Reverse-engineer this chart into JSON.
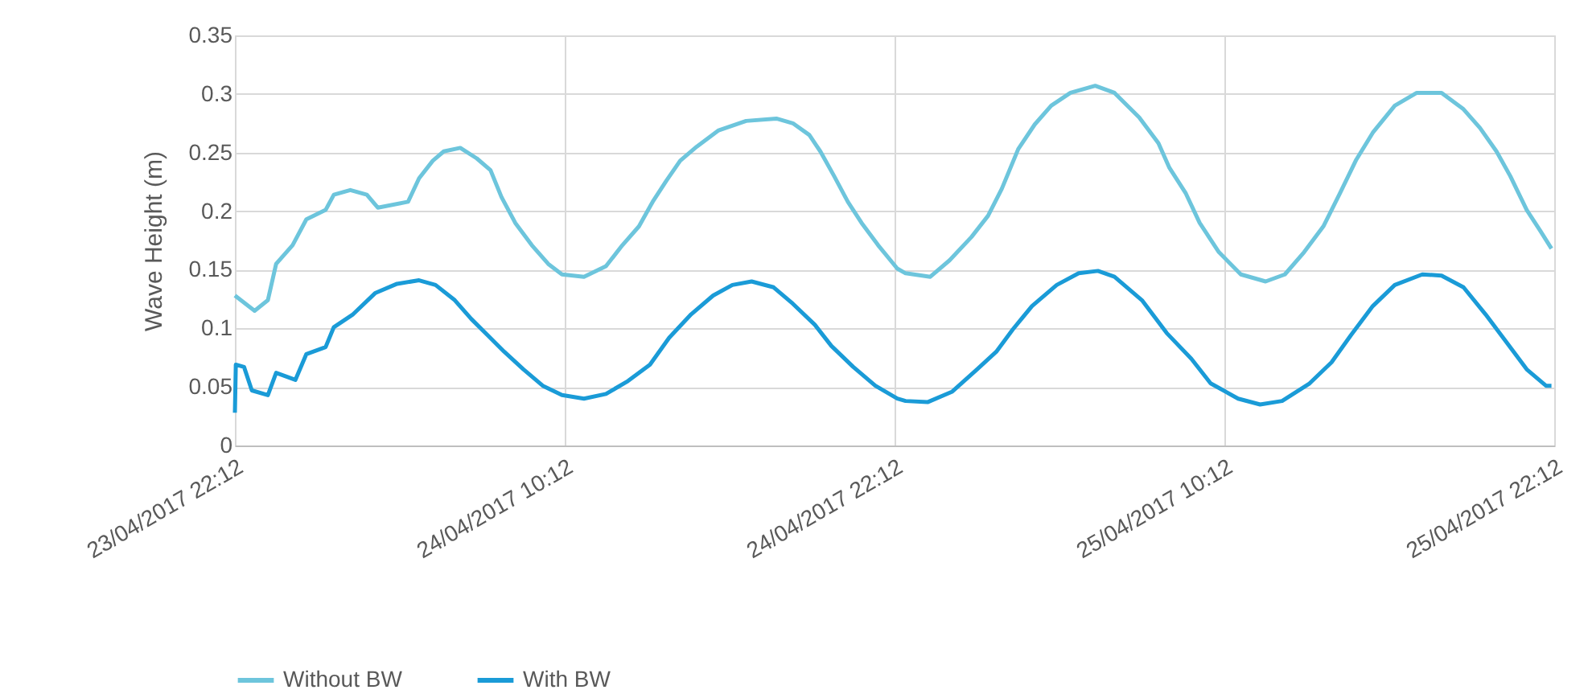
{
  "chart_data": {
    "type": "line",
    "ylabel": "Wave Height (m)",
    "xlim": [
      "2017-04-23T22:12",
      "2017-04-25T22:12"
    ],
    "xticks": [
      {
        "value": "2017-04-23T22:12",
        "label": "23/04/2017 22:12"
      },
      {
        "value": "2017-04-24T10:12",
        "label": "24/04/2017 10:12"
      },
      {
        "value": "2017-04-24T22:12",
        "label": "24/04/2017 22:12"
      },
      {
        "value": "2017-04-25T10:12",
        "label": "25/04/2017 10:12"
      },
      {
        "value": "2017-04-25T22:12",
        "label": "25/04/2017 22:12"
      }
    ],
    "ylim": [
      0,
      0.35
    ],
    "yticks": [
      0,
      0.05,
      0.1,
      0.15,
      0.2,
      0.25,
      0.3,
      0.35
    ],
    "grid": true,
    "legend": "bottom",
    "marker": "none",
    "line_style": "solid",
    "series": [
      {
        "name": "Without BW",
        "color": "#6dc5dc",
        "x": [
          "2017-04-23T22:12",
          "2017-04-23T22:55",
          "2017-04-23T23:24",
          "2017-04-23T23:42",
          "2017-04-24T00:18",
          "2017-04-24T00:48",
          "2017-04-24T01:30",
          "2017-04-24T01:48",
          "2017-04-24T02:24",
          "2017-04-24T03:00",
          "2017-04-24T03:24",
          "2017-04-24T04:30",
          "2017-04-24T04:54",
          "2017-04-24T05:24",
          "2017-04-24T05:48",
          "2017-04-24T06:24",
          "2017-04-24T07:00",
          "2017-04-24T07:30",
          "2017-04-24T07:54",
          "2017-04-24T08:24",
          "2017-04-24T09:00",
          "2017-04-24T09:36",
          "2017-04-24T10:06",
          "2017-04-24T10:54",
          "2017-04-24T11:42",
          "2017-04-24T12:18",
          "2017-04-24T12:54",
          "2017-04-24T13:24",
          "2017-04-24T13:54",
          "2017-04-24T14:24",
          "2017-04-24T15:00",
          "2017-04-24T15:48",
          "2017-04-24T16:48",
          "2017-04-24T17:54",
          "2017-04-24T18:30",
          "2017-04-24T19:06",
          "2017-04-24T19:30",
          "2017-04-24T20:00",
          "2017-04-24T20:30",
          "2017-04-24T21:00",
          "2017-04-24T21:36",
          "2017-04-24T22:18",
          "2017-04-24T22:36",
          "2017-04-24T23:30",
          "2017-04-25T00:12",
          "2017-04-25T01:00",
          "2017-04-25T01:36",
          "2017-04-25T02:06",
          "2017-04-25T02:42",
          "2017-04-25T03:18",
          "2017-04-25T03:54",
          "2017-04-25T04:36",
          "2017-04-25T05:30",
          "2017-04-25T06:12",
          "2017-04-25T07:06",
          "2017-04-25T07:48",
          "2017-04-25T08:12",
          "2017-04-25T08:48",
          "2017-04-25T09:18",
          "2017-04-25T10:00",
          "2017-04-25T10:48",
          "2017-04-25T11:42",
          "2017-04-25T12:24",
          "2017-04-25T13:06",
          "2017-04-25T13:48",
          "2017-04-25T14:24",
          "2017-04-25T15:00",
          "2017-04-25T15:36",
          "2017-04-25T16:24",
          "2017-04-25T17:12",
          "2017-04-25T18:06",
          "2017-04-25T18:54",
          "2017-04-25T19:30",
          "2017-04-25T20:06",
          "2017-04-25T20:36",
          "2017-04-25T21:12",
          "2017-04-25T21:42",
          "2017-04-25T22:06"
        ],
        "values": [
          0.128,
          0.115,
          0.124,
          0.155,
          0.171,
          0.193,
          0.201,
          0.214,
          0.218,
          0.214,
          0.203,
          0.208,
          0.228,
          0.243,
          0.251,
          0.254,
          0.245,
          0.235,
          0.212,
          0.19,
          0.171,
          0.155,
          0.146,
          0.144,
          0.153,
          0.171,
          0.187,
          0.208,
          0.226,
          0.243,
          0.255,
          0.269,
          0.277,
          0.279,
          0.275,
          0.265,
          0.251,
          0.23,
          0.208,
          0.19,
          0.171,
          0.151,
          0.147,
          0.144,
          0.158,
          0.178,
          0.196,
          0.219,
          0.253,
          0.274,
          0.29,
          0.301,
          0.307,
          0.301,
          0.28,
          0.258,
          0.237,
          0.215,
          0.19,
          0.165,
          0.146,
          0.14,
          0.146,
          0.165,
          0.187,
          0.215,
          0.244,
          0.267,
          0.29,
          0.301,
          0.301,
          0.287,
          0.271,
          0.251,
          0.23,
          0.201,
          0.183,
          0.168
        ]
      },
      {
        "name": "With BW",
        "color": "#1a9bd7",
        "x": [
          "2017-04-23T22:12",
          "2017-04-23T22:14",
          "2017-04-23T22:32",
          "2017-04-23T22:49",
          "2017-04-23T23:24",
          "2017-04-23T23:42",
          "2017-04-24T00:24",
          "2017-04-24T00:48",
          "2017-04-24T01:30",
          "2017-04-24T01:48",
          "2017-04-24T02:30",
          "2017-04-24T03:18",
          "2017-04-24T04:06",
          "2017-04-24T04:54",
          "2017-04-24T05:30",
          "2017-04-24T06:12",
          "2017-04-24T06:48",
          "2017-04-24T07:24",
          "2017-04-24T08:00",
          "2017-04-24T08:42",
          "2017-04-24T09:24",
          "2017-04-24T10:06",
          "2017-04-24T10:54",
          "2017-04-24T11:42",
          "2017-04-24T12:30",
          "2017-04-24T13:18",
          "2017-04-24T14:00",
          "2017-04-24T14:48",
          "2017-04-24T15:36",
          "2017-04-24T16:18",
          "2017-04-24T17:00",
          "2017-04-24T17:48",
          "2017-04-24T18:30",
          "2017-04-24T19:18",
          "2017-04-24T19:54",
          "2017-04-24T20:42",
          "2017-04-24T21:30",
          "2017-04-24T22:18",
          "2017-04-24T22:36",
          "2017-04-24T23:24",
          "2017-04-25T00:18",
          "2017-04-25T01:12",
          "2017-04-25T01:54",
          "2017-04-25T02:30",
          "2017-04-25T03:12",
          "2017-04-25T04:06",
          "2017-04-25T04:54",
          "2017-04-25T05:36",
          "2017-04-25T06:12",
          "2017-04-25T07:12",
          "2017-04-25T08:06",
          "2017-04-25T09:00",
          "2017-04-25T09:42",
          "2017-04-25T10:42",
          "2017-04-25T11:30",
          "2017-04-25T12:18",
          "2017-04-25T13:18",
          "2017-04-25T14:06",
          "2017-04-25T14:48",
          "2017-04-25T15:36",
          "2017-04-25T16:24",
          "2017-04-25T17:24",
          "2017-04-25T18:06",
          "2017-04-25T18:54",
          "2017-04-25T19:42",
          "2017-04-25T20:30",
          "2017-04-25T21:12",
          "2017-04-25T21:54",
          "2017-04-25T22:06"
        ],
        "values": [
          0.028,
          0.069,
          0.067,
          0.047,
          0.043,
          0.062,
          0.056,
          0.078,
          0.084,
          0.101,
          0.112,
          0.13,
          0.138,
          0.141,
          0.137,
          0.124,
          0.108,
          0.094,
          0.08,
          0.065,
          0.051,
          0.043,
          0.04,
          0.044,
          0.055,
          0.069,
          0.092,
          0.112,
          0.128,
          0.137,
          0.14,
          0.135,
          0.121,
          0.103,
          0.085,
          0.067,
          0.051,
          0.04,
          0.038,
          0.037,
          0.046,
          0.065,
          0.08,
          0.099,
          0.119,
          0.137,
          0.147,
          0.149,
          0.144,
          0.124,
          0.096,
          0.074,
          0.053,
          0.04,
          0.035,
          0.038,
          0.053,
          0.071,
          0.094,
          0.119,
          0.137,
          0.146,
          0.145,
          0.135,
          0.112,
          0.087,
          0.065,
          0.051,
          0.051
        ]
      }
    ]
  }
}
